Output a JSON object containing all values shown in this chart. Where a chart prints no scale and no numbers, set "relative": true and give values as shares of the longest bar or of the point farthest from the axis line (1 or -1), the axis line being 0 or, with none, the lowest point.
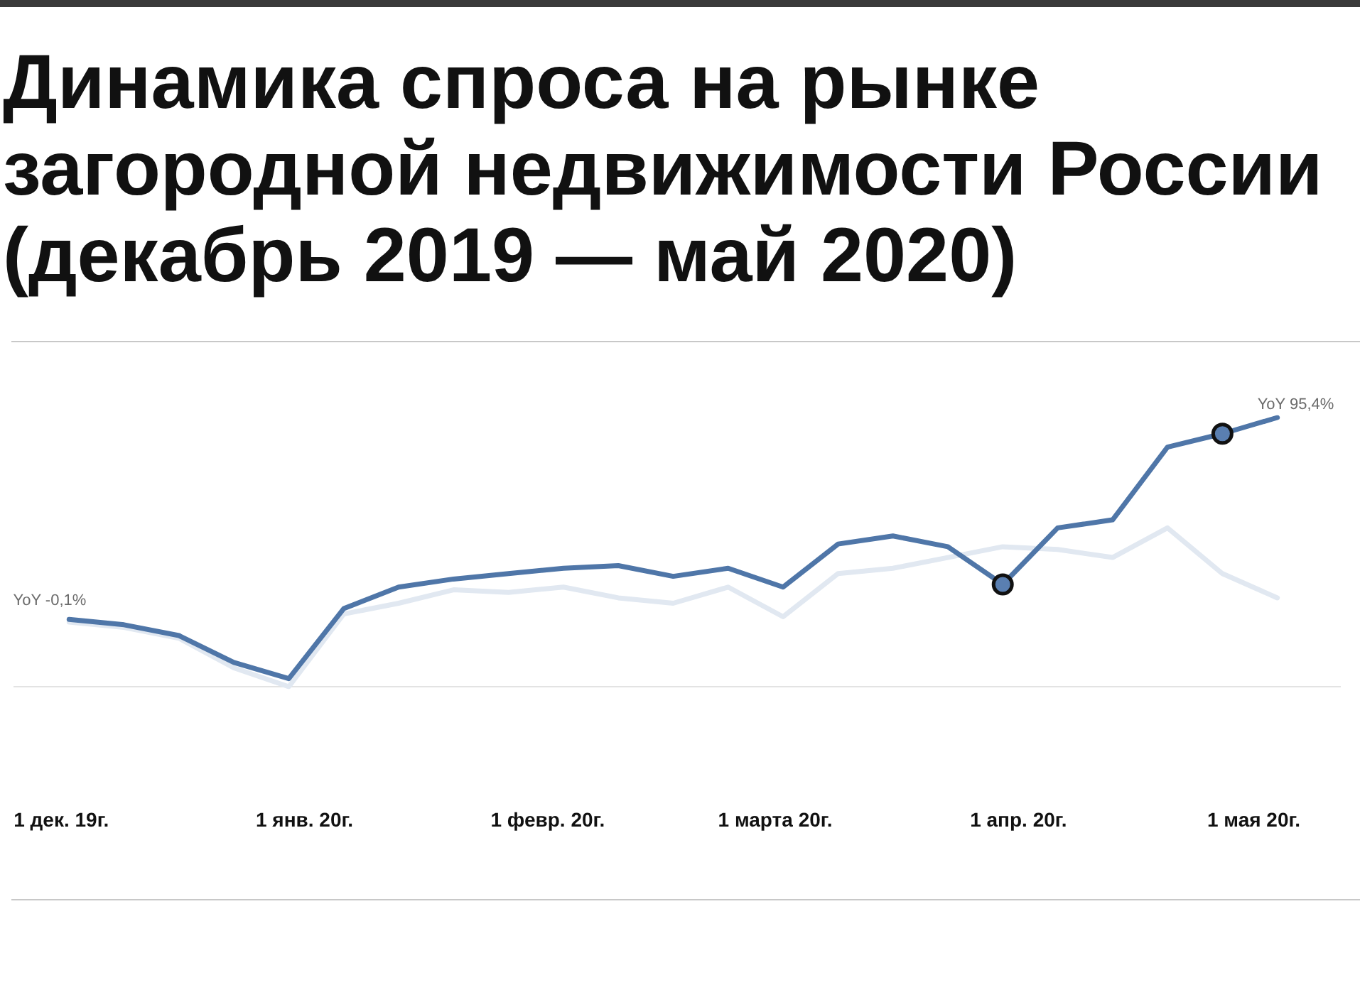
{
  "chart_data": {
    "type": "line",
    "title": "Динамика спроса на рынке загородной недвижимости России (декабрь 2019 — май 2020)",
    "x": [
      "2019-12-02",
      "2019-12-09",
      "2019-12-16",
      "2019-12-23",
      "2019-12-30",
      "2020-01-06",
      "2020-01-13",
      "2020-01-20",
      "2020-01-27",
      "2020-02-03",
      "2020-02-10",
      "2020-02-17",
      "2020-02-24",
      "2020-03-02",
      "2020-03-09",
      "2020-03-16",
      "2020-03-23",
      "2020-03-30",
      "2020-04-06",
      "2020-04-13",
      "2020-04-20",
      "2020-04-27",
      "2020-05-04"
    ],
    "xlim": [
      "2019-11-25",
      "2020-05-12"
    ],
    "xticks": [
      {
        "value": "2019-12-01",
        "label": "1 дек. 19г."
      },
      {
        "value": "2020-01-01",
        "label": "1 янв. 20г."
      },
      {
        "value": "2020-02-01",
        "label": "1 февр. 20г."
      },
      {
        "value": "2020-03-01",
        "label": "1 марта 20г."
      },
      {
        "value": "2020-04-01",
        "label": "1 апр. 20г."
      },
      {
        "value": "2020-05-01",
        "label": "1 мая 20г."
      }
    ],
    "relative": true,
    "series": [
      {
        "color": "#4f76a8",
        "values": [
          0.25,
          0.23,
          0.19,
          0.09,
          0.03,
          0.29,
          0.37,
          0.4,
          0.42,
          0.44,
          0.45,
          0.41,
          0.44,
          0.37,
          0.53,
          0.56,
          0.52,
          0.38,
          0.59,
          0.62,
          0.89,
          0.94,
          1
        ]
      },
      {
        "color": "#e1e8f1",
        "values": [
          0.24,
          0.22,
          0.18,
          0.07,
          0,
          0.27,
          0.31,
          0.36,
          0.35,
          0.37,
          0.33,
          0.31,
          0.37,
          0.26,
          0.42,
          0.44,
          0.48,
          0.52,
          0.51,
          0.48,
          0.59,
          0.42,
          0.33
        ]
      },
      {
        "type": "scatter",
        "color": "#5a7fb1",
        "marker": "circle",
        "x": [
          "2020-03-30",
          "2020-04-27"
        ],
        "values": [
          0.38,
          0.94
        ]
      }
    ],
    "annotations": [
      {
        "text": "YoY -0,1%",
        "x": "2019-12-02",
        "y": 0.25
      },
      {
        "text": "YoY 95,4%",
        "x": "2020-05-04",
        "y": 1
      }
    ]
  }
}
